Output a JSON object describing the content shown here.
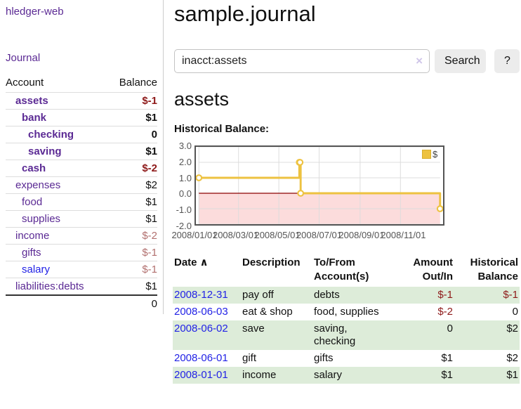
{
  "sidebar": {
    "app_title": "hledger-web",
    "journal_link": "Journal",
    "table": {
      "headers": [
        "Account",
        "Balance"
      ],
      "rows": [
        {
          "account": "assets",
          "depth": 1,
          "bold": true,
          "balance": "$-1",
          "neg": "strong"
        },
        {
          "account": "bank",
          "depth": 2,
          "bold": true,
          "balance": "$1"
        },
        {
          "account": "checking",
          "depth": 3,
          "bold": true,
          "balance": "0"
        },
        {
          "account": "saving",
          "depth": 3,
          "bold": true,
          "balance": "$1"
        },
        {
          "account": "cash",
          "depth": 2,
          "bold": true,
          "balance": "$-2",
          "neg": "strong"
        },
        {
          "account": "expenses",
          "depth": 1,
          "bold": false,
          "balance": "$2"
        },
        {
          "account": "food",
          "depth": 2,
          "bold": false,
          "balance": "$1"
        },
        {
          "account": "supplies",
          "depth": 2,
          "bold": false,
          "balance": "$1"
        },
        {
          "account": "income",
          "depth": 1,
          "bold": false,
          "balance": "$-2",
          "neg": "muted"
        },
        {
          "account": "gifts",
          "depth": 2,
          "bold": false,
          "balance": "$-1",
          "neg": "muted"
        },
        {
          "account": "salary",
          "depth": 2,
          "bold": false,
          "balance": "$-1",
          "neg": "muted",
          "blue": true
        },
        {
          "account": "liabilities:debts",
          "depth": 1,
          "bold": false,
          "balance": "$1"
        }
      ],
      "total": "0"
    }
  },
  "main": {
    "title": "sample.journal",
    "search": {
      "value": "inacct:assets",
      "clear_icon": "×",
      "button_label": "Search",
      "help_label": "?"
    },
    "account_heading": "assets",
    "chart_label": "Historical Balance:"
  },
  "chart_data": {
    "type": "line",
    "step": true,
    "title": "Historical Balance:",
    "x_range": [
      "2008-01-01",
      "2008-12-31"
    ],
    "ylim": [
      -2.0,
      3.0
    ],
    "y_ticks": [
      3.0,
      2.0,
      1.0,
      0.0,
      -1.0,
      -2.0
    ],
    "x_ticks": [
      "2008/01/01",
      "2008/03/01",
      "2008/05/01",
      "2008/07/01",
      "2008/09/01",
      "2008/11/01"
    ],
    "series": [
      {
        "name": "$",
        "color": "#edc240",
        "points": [
          {
            "date": "2008-01-01",
            "value": 1
          },
          {
            "date": "2008-06-01",
            "value": 2
          },
          {
            "date": "2008-06-02",
            "value": 2
          },
          {
            "date": "2008-06-03",
            "value": 0
          },
          {
            "date": "2008-12-31",
            "value": -1
          }
        ]
      }
    ],
    "negative_region_color": "#fcdcdc",
    "zero_line_color": "#8b0000",
    "grid_color": "#dcdcdc",
    "border_color": "#545454",
    "legend_position": "top-right"
  },
  "register": {
    "headers": [
      {
        "lines": [
          "Date"
        ],
        "sort_icon": "∧",
        "align": "left"
      },
      {
        "lines": [
          "Description"
        ],
        "align": "left"
      },
      {
        "lines": [
          "To/From",
          "Account(s)"
        ],
        "align": "left"
      },
      {
        "lines": [
          "Amount",
          "Out/In"
        ],
        "align": "right"
      },
      {
        "lines": [
          "Historical",
          "Balance"
        ],
        "align": "right"
      }
    ],
    "rows": [
      {
        "date": "2008-12-31",
        "description": "pay off",
        "accounts": "debts",
        "amount": "$-1",
        "amount_neg": true,
        "balance": "$-1",
        "balance_neg": true,
        "shade": true,
        "wrap": false
      },
      {
        "date": "2008-06-03",
        "description": "eat & shop",
        "accounts": "food, supplies",
        "amount": "$-2",
        "amount_neg": true,
        "balance": "0",
        "balance_neg": false,
        "shade": false,
        "wrap": false
      },
      {
        "date": "2008-06-02",
        "description": "save",
        "accounts": "saving, checking",
        "amount": "0",
        "amount_neg": false,
        "balance": "$2",
        "balance_neg": false,
        "shade": true,
        "wrap": true
      },
      {
        "date": "2008-06-01",
        "description": "gift",
        "accounts": "gifts",
        "amount": "$1",
        "amount_neg": false,
        "balance": "$2",
        "balance_neg": false,
        "shade": false,
        "wrap": false
      },
      {
        "date": "2008-01-01",
        "description": "income",
        "accounts": "salary",
        "amount": "$1",
        "amount_neg": false,
        "balance": "$1",
        "balance_neg": false,
        "shade": true,
        "wrap": false
      }
    ]
  }
}
